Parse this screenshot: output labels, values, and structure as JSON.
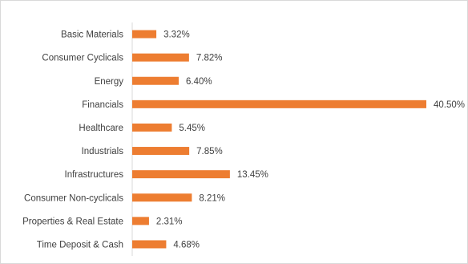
{
  "chart_data": {
    "type": "bar",
    "orientation": "horizontal",
    "title": "",
    "xlabel": "",
    "ylabel": "",
    "xlim": [
      0,
      42
    ],
    "grid": false,
    "legend": "none",
    "bar_color": "#ED7D31",
    "value_suffix": "%",
    "categories": [
      "Basic Materials",
      "Consumer Cyclicals",
      "Energy",
      "Financials",
      "Healthcare",
      "Industrials",
      "Infrastructures",
      "Consumer Non-cyclicals",
      "Properties & Real Estate",
      "Time Deposit & Cash"
    ],
    "values": [
      3.32,
      7.82,
      6.4,
      40.5,
      5.45,
      7.85,
      13.45,
      8.21,
      2.31,
      4.68
    ],
    "value_labels": [
      "3.32%",
      "7.82%",
      "6.40%",
      "40.50%",
      "5.45%",
      "7.85%",
      "13.45%",
      "8.21%",
      "2.31%",
      "4.68%"
    ]
  }
}
